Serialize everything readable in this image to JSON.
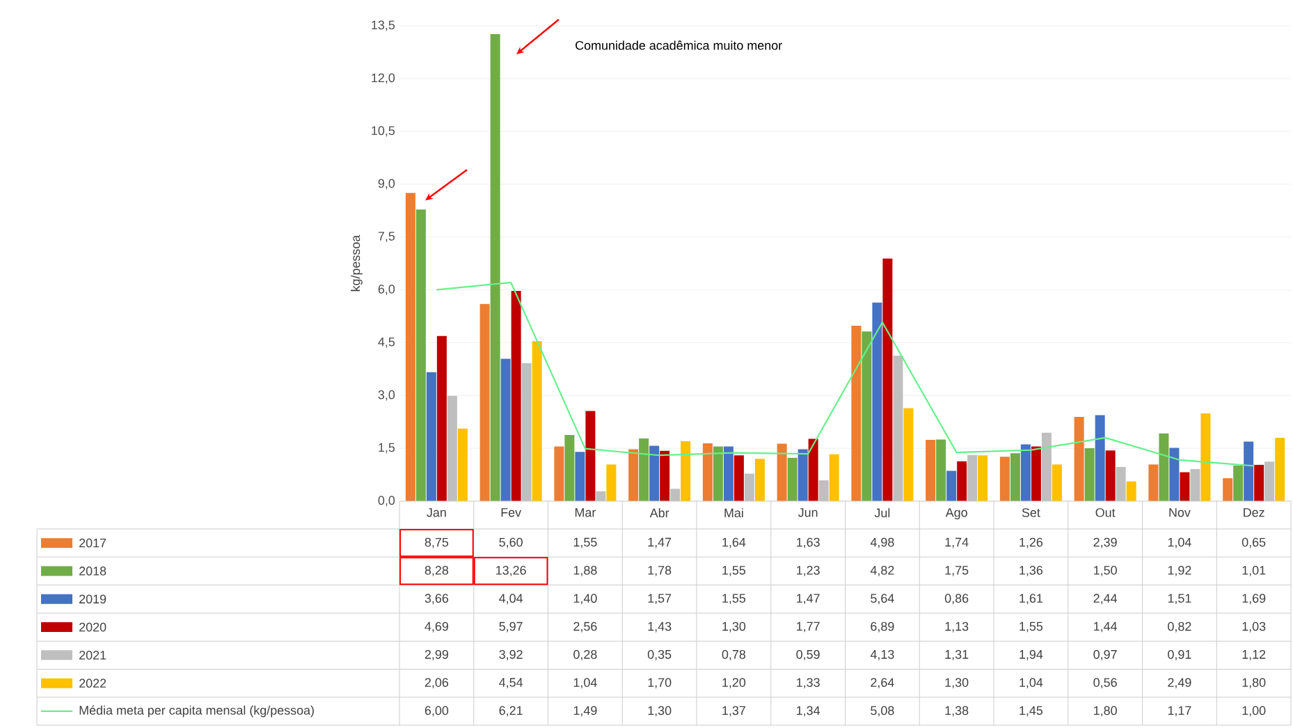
{
  "chart_data": {
    "type": "bar",
    "ylabel": "kg/pessoa",
    "categories": [
      "Jan",
      "Fev",
      "Mar",
      "Abr",
      "Mai",
      "Jun",
      "Jul",
      "Ago",
      "Set",
      "Out",
      "Nov",
      "Dez"
    ],
    "series": [
      {
        "name": "2017",
        "color": "#ed7d31",
        "values": [
          8.75,
          5.6,
          1.55,
          1.47,
          1.64,
          1.63,
          4.98,
          1.74,
          1.26,
          2.39,
          1.04,
          0.65
        ],
        "value_labels": [
          "8,75",
          "5,60",
          "1,55",
          "1,47",
          "1,64",
          "1,63",
          "4,98",
          "1,74",
          "1,26",
          "2,39",
          "1,04",
          "0,65"
        ]
      },
      {
        "name": "2018",
        "color": "#70ad47",
        "values": [
          8.28,
          13.26,
          1.88,
          1.78,
          1.55,
          1.23,
          4.82,
          1.75,
          1.36,
          1.5,
          1.92,
          1.01
        ],
        "value_labels": [
          "8,28",
          "13,26",
          "1,88",
          "1,78",
          "1,55",
          "1,23",
          "4,82",
          "1,75",
          "1,36",
          "1,50",
          "1,92",
          "1,01"
        ]
      },
      {
        "name": "2019",
        "color": "#4472c4",
        "values": [
          3.66,
          4.04,
          1.4,
          1.57,
          1.55,
          1.47,
          5.64,
          0.86,
          1.61,
          2.44,
          1.51,
          1.69
        ],
        "value_labels": [
          "3,66",
          "4,04",
          "1,40",
          "1,57",
          "1,55",
          "1,47",
          "5,64",
          "0,86",
          "1,61",
          "2,44",
          "1,51",
          "1,69"
        ]
      },
      {
        "name": "2020",
        "color": "#c00000",
        "values": [
          4.69,
          5.97,
          2.56,
          1.43,
          1.3,
          1.77,
          6.89,
          1.13,
          1.55,
          1.44,
          0.82,
          1.03
        ],
        "value_labels": [
          "4,69",
          "5,97",
          "2,56",
          "1,43",
          "1,30",
          "1,77",
          "6,89",
          "1,13",
          "1,55",
          "1,44",
          "0,82",
          "1,03"
        ]
      },
      {
        "name": "2021",
        "color": "#bfbfbf",
        "values": [
          2.99,
          3.92,
          0.28,
          0.35,
          0.78,
          0.59,
          4.13,
          1.31,
          1.94,
          0.97,
          0.91,
          1.12
        ],
        "value_labels": [
          "2,99",
          "3,92",
          "0,28",
          "0,35",
          "0,78",
          "0,59",
          "4,13",
          "1,31",
          "1,94",
          "0,97",
          "0,91",
          "1,12"
        ]
      },
      {
        "name": "2022",
        "color": "#ffc000",
        "values": [
          2.06,
          4.54,
          1.04,
          1.7,
          1.2,
          1.33,
          2.64,
          1.3,
          1.04,
          0.56,
          2.49,
          1.8
        ],
        "value_labels": [
          "2,06",
          "4,54",
          "1,04",
          "1,70",
          "1,20",
          "1,33",
          "2,64",
          "1,30",
          "1,04",
          "0,56",
          "2,49",
          "1,80"
        ]
      },
      {
        "name": "Média meta per capita mensal (kg/pessoa)",
        "type": "line",
        "color": "#66f08c",
        "values": [
          6.0,
          6.21,
          1.49,
          1.3,
          1.37,
          1.34,
          5.08,
          1.38,
          1.45,
          1.8,
          1.17,
          1.0
        ],
        "value_labels": [
          "6,00",
          "6,21",
          "1,49",
          "1,30",
          "1,37",
          "1,34",
          "5,08",
          "1,38",
          "1,45",
          "1,80",
          "1,17",
          "1,00"
        ]
      }
    ],
    "ylim": [
      0,
      13.5
    ],
    "yticks": [
      {
        "value": 0,
        "label": "0,0"
      },
      {
        "value": 1.5,
        "label": "1,5"
      },
      {
        "value": 3,
        "label": "3,0"
      },
      {
        "value": 4.5,
        "label": "4,5"
      },
      {
        "value": 6,
        "label": "6,0"
      },
      {
        "value": 7.5,
        "label": "7,5"
      },
      {
        "value": 9,
        "label": "9,0"
      },
      {
        "value": 10.5,
        "label": "10,5"
      },
      {
        "value": 12,
        "label": "12,0"
      },
      {
        "value": 13.5,
        "label": "13,5"
      }
    ],
    "grid": "y",
    "legend": "bottom",
    "annotations": [
      "Comunidade acadêmica muito menor"
    ]
  }
}
